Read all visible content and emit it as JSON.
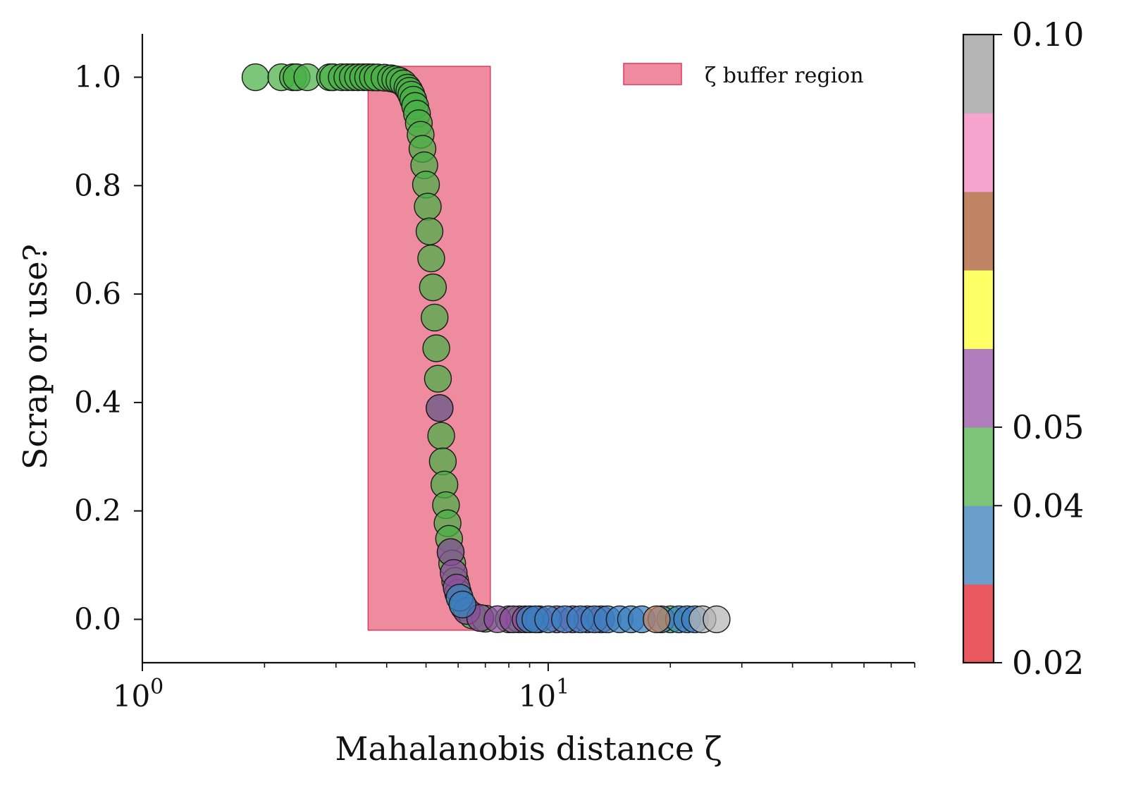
{
  "chart_data": {
    "type": "scatter",
    "xlabel": "Mahalanobis distance ζ",
    "ylabel": "Scrap or use?",
    "xscale": "log",
    "xlim": [
      1,
      80
    ],
    "ylim": [
      -0.08,
      1.08
    ],
    "x_ticks": [
      {
        "value": 1,
        "base": "10",
        "exp": "0"
      },
      {
        "value": 10,
        "base": "10",
        "exp": "1"
      }
    ],
    "y_ticks": [
      {
        "value": 0.0,
        "label": "0.0"
      },
      {
        "value": 0.2,
        "label": "0.2"
      },
      {
        "value": 0.4,
        "label": "0.4"
      },
      {
        "value": 0.6,
        "label": "0.6"
      },
      {
        "value": 0.8,
        "label": "0.8"
      },
      {
        "value": 1.0,
        "label": "1.0"
      }
    ],
    "grid": false,
    "legend": {
      "position": "top-right",
      "entries": [
        {
          "label": "ζ buffer region",
          "color": "#e8647e"
        }
      ]
    },
    "buffer_region": {
      "x0": 3.6,
      "x1": 7.2,
      "y0": -0.02,
      "y1": 1.02,
      "color": "#e8647e"
    },
    "sigmoid": {
      "center": 5.3,
      "steepness": 24
    },
    "series": [
      {
        "category": 5,
        "x": [
          1.9,
          2.2,
          2.35,
          2.4,
          2.55,
          2.9,
          2.95,
          3.1,
          3.2,
          3.3,
          3.4,
          3.5,
          3.6,
          3.7,
          3.8,
          3.95,
          4.1,
          4.2,
          4.3,
          4.4,
          4.5,
          4.55,
          4.6,
          4.65,
          4.7,
          4.75,
          4.8,
          4.85,
          4.9,
          4.95,
          5.0,
          5.05,
          5.1,
          5.15,
          5.2,
          5.25,
          5.3,
          5.35,
          5.4,
          5.45,
          5.5,
          5.55,
          5.6,
          5.65,
          5.7,
          5.75,
          5.8,
          5.9,
          6.0,
          6.2,
          6.5,
          7.0,
          8.0,
          8.5,
          20.0
        ]
      },
      {
        "category": 6,
        "x": [
          5.4,
          5.75,
          5.85,
          5.95,
          6.3,
          6.8,
          7.5,
          8.2,
          8.8,
          9.5,
          10.5,
          11.5,
          12.5,
          13.5
        ]
      },
      {
        "category": 4,
        "x": [
          6.05,
          6.15,
          9.0,
          9.3,
          10.0,
          11.0,
          12.0,
          13.0,
          14.0,
          15.0,
          16.0,
          17.0,
          19.0,
          21.0,
          22.0,
          23.0
        ]
      },
      {
        "category": 7,
        "x": [
          18.5
        ]
      },
      {
        "category": 9,
        "x": [
          24.0,
          26.0
        ]
      }
    ],
    "colorbar": {
      "colors": [
        "#e8585e",
        "#6b9fcb",
        "#7ec57a",
        "#b07cbc",
        "#ffff66",
        "#be8464",
        "#f7a3cf",
        "#b5b5b5"
      ],
      "tick_labels": [
        "0.02",
        "0.04",
        "0.05",
        "0.10"
      ],
      "tick_positions": [
        0,
        2,
        3,
        8
      ]
    }
  }
}
